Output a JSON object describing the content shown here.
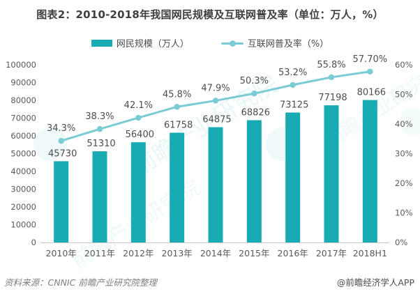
{
  "title": "图表2：2010-2018年我国网民规模及互联网普及率（单位：万人，%）",
  "legend": {
    "items": [
      {
        "label": "网民规模（万人）",
        "marker": "bar-swatch",
        "color": "#19abb4"
      },
      {
        "label": "互联网普及率（%）",
        "marker": "line-dot-swatch",
        "color": "#7accd4"
      }
    ]
  },
  "chart_data": {
    "type": "combo",
    "categories": [
      "2010年",
      "2011年",
      "2012年",
      "2013年",
      "2014年",
      "2015年",
      "2016年",
      "2017年",
      "2018H1"
    ],
    "series": [
      {
        "name": "网民规模（万人）",
        "type": "bar",
        "axis": "left",
        "color": "#19abb4",
        "values": [
          45730,
          51310,
          56400,
          61758,
          64875,
          68826,
          73125,
          77198,
          80166
        ],
        "point_labels": [
          "45730",
          "51310",
          "56400",
          "61758",
          "64875",
          "68826",
          "73125",
          "77198",
          "80166"
        ]
      },
      {
        "name": "互联网普及率（%）",
        "type": "line",
        "axis": "right",
        "color": "#7accd4",
        "values": [
          34.3,
          38.3,
          42.1,
          45.8,
          47.9,
          50.3,
          53.2,
          55.8,
          57.7
        ],
        "point_labels": [
          "34.3%",
          "38.3%",
          "42.1%",
          "45.8%",
          "47.9%",
          "50.3%",
          "53.2%",
          "55.8%",
          "57.70%"
        ]
      }
    ],
    "left_axis": {
      "min": 0,
      "max": 100000,
      "step": 10000,
      "tick_labels": [
        "0",
        "10000",
        "20000",
        "30000",
        "40000",
        "50000",
        "60000",
        "70000",
        "80000",
        "90000",
        "100000"
      ]
    },
    "right_axis": {
      "min": 0,
      "max": 60,
      "step": 10,
      "tick_labels": [
        "0%",
        "10%",
        "20%",
        "30%",
        "40%",
        "50%",
        "60%"
      ]
    },
    "grid": false,
    "legend_position": "top",
    "title": "图表2：2010-2018年我国网民规模及互联网普及率（单位：万人，%）"
  },
  "watermark": {
    "text": "前瞻产业研究院"
  },
  "footer": {
    "source": "资料来源：CNNIC 前瞻产业研究院整理",
    "credit": "@前瞻经济学人APP"
  },
  "colors": {
    "bar": "#19abb4",
    "line": "#7accd4",
    "title_text": "#3f3f3f",
    "axis_text": "#595959",
    "data_label": "#4d4d4d",
    "axis_line": "#c9c9c9",
    "source_text": "#7f7f7f",
    "credit_text": "#4d4d4d",
    "watermark": "#2aacb4"
  }
}
